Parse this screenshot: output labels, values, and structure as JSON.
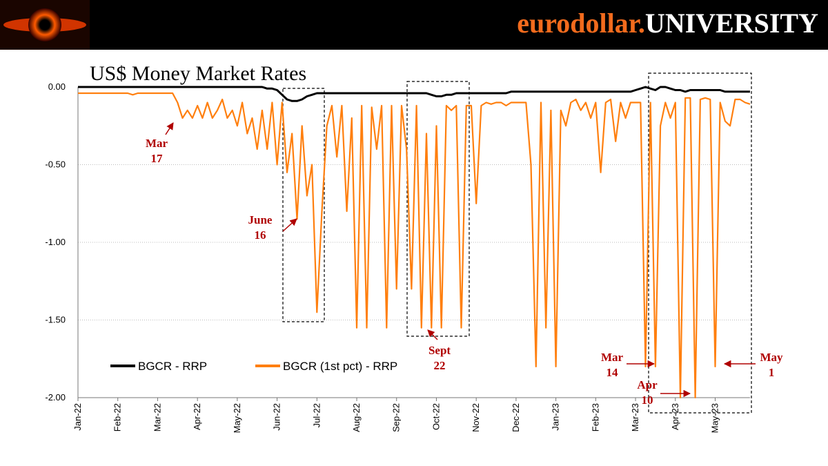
{
  "header": {
    "brand": "eurodollar.",
    "brand_suffix": "UNIVERSITY"
  },
  "chart_data": {
    "type": "line",
    "title": "US$ Money Market Rates",
    "categories": [
      "Jan-22",
      null,
      null,
      null,
      null,
      null,
      null,
      null,
      "Feb-22",
      null,
      null,
      null,
      null,
      null,
      null,
      null,
      "Mar-22",
      null,
      null,
      null,
      null,
      null,
      null,
      null,
      "Apr-22",
      null,
      null,
      null,
      null,
      null,
      null,
      null,
      "May-22",
      null,
      null,
      null,
      null,
      null,
      null,
      null,
      "Jun-22",
      null,
      null,
      null,
      null,
      null,
      null,
      null,
      "Jul-22",
      null,
      null,
      null,
      null,
      null,
      null,
      null,
      "Aug-22",
      null,
      null,
      null,
      null,
      null,
      null,
      null,
      "Sep-22",
      null,
      null,
      null,
      null,
      null,
      null,
      null,
      "Oct-22",
      null,
      null,
      null,
      null,
      null,
      null,
      null,
      "Nov-22",
      null,
      null,
      null,
      null,
      null,
      null,
      null,
      "Dec-22",
      null,
      null,
      null,
      null,
      null,
      null,
      null,
      "Jan-23",
      null,
      null,
      null,
      null,
      null,
      null,
      null,
      "Feb-23",
      null,
      null,
      null,
      null,
      null,
      null,
      null,
      "Mar-23",
      null,
      null,
      null,
      null,
      null,
      null,
      null,
      "Apr-23",
      null,
      null,
      null,
      null,
      null,
      null,
      null,
      "May-23",
      null,
      null,
      null,
      null,
      null,
      null,
      null
    ],
    "series": [
      {
        "name": "BGCR - RRP",
        "color": "#000000",
        "values": [
          0,
          0,
          0,
          0,
          0,
          0,
          0,
          0,
          0,
          0,
          0,
          0,
          0,
          0,
          0,
          0,
          0,
          0,
          0,
          0,
          0,
          0,
          0,
          0,
          0,
          0,
          0,
          0,
          0,
          0,
          0,
          0,
          0,
          0,
          0,
          0,
          0,
          0,
          -0.01,
          -0.01,
          -0.02,
          -0.05,
          -0.08,
          -0.09,
          -0.09,
          -0.08,
          -0.06,
          -0.05,
          -0.04,
          -0.04,
          -0.04,
          -0.04,
          -0.04,
          -0.04,
          -0.04,
          -0.04,
          -0.04,
          -0.04,
          -0.04,
          -0.04,
          -0.04,
          -0.04,
          -0.04,
          -0.04,
          -0.04,
          -0.04,
          -0.04,
          -0.04,
          -0.04,
          -0.04,
          -0.04,
          -0.05,
          -0.06,
          -0.06,
          -0.05,
          -0.05,
          -0.04,
          -0.04,
          -0.04,
          -0.04,
          -0.04,
          -0.04,
          -0.04,
          -0.04,
          -0.04,
          -0.04,
          -0.04,
          -0.03,
          -0.03,
          -0.03,
          -0.03,
          -0.03,
          -0.03,
          -0.03,
          -0.03,
          -0.03,
          -0.03,
          -0.03,
          -0.03,
          -0.03,
          -0.03,
          -0.03,
          -0.03,
          -0.03,
          -0.03,
          -0.03,
          -0.03,
          -0.03,
          -0.03,
          -0.03,
          -0.03,
          -0.03,
          -0.02,
          -0.01,
          0,
          -0.01,
          -0.02,
          0,
          0,
          -0.01,
          -0.02,
          -0.02,
          -0.03,
          -0.02,
          -0.02,
          -0.02,
          -0.02,
          -0.02,
          -0.02,
          -0.02,
          -0.03,
          -0.03,
          -0.03,
          -0.03,
          -0.03,
          -0.03
        ]
      },
      {
        "name": "BGCR (1st pct) - RRP",
        "color": "#ff7f0e",
        "values": [
          -0.04,
          -0.04,
          -0.04,
          -0.04,
          -0.04,
          -0.04,
          -0.04,
          -0.04,
          -0.04,
          -0.04,
          -0.04,
          -0.05,
          -0.04,
          -0.04,
          -0.04,
          -0.04,
          -0.04,
          -0.04,
          -0.04,
          -0.04,
          -0.1,
          -0.2,
          -0.15,
          -0.2,
          -0.12,
          -0.2,
          -0.1,
          -0.2,
          -0.15,
          -0.08,
          -0.2,
          -0.15,
          -0.25,
          -0.1,
          -0.3,
          -0.2,
          -0.4,
          -0.15,
          -0.4,
          -0.1,
          -0.5,
          -0.1,
          -0.55,
          -0.3,
          -0.85,
          -0.25,
          -0.7,
          -0.5,
          -1.45,
          -0.8,
          -0.25,
          -0.12,
          -0.45,
          -0.12,
          -0.8,
          -0.2,
          -1.55,
          -0.12,
          -1.55,
          -0.13,
          -0.4,
          -0.12,
          -1.55,
          -0.12,
          -1.3,
          -0.12,
          -0.4,
          -1.3,
          -0.12,
          -1.55,
          -0.3,
          -1.55,
          -0.25,
          -1.55,
          -0.12,
          -0.15,
          -0.12,
          -1.55,
          -0.12,
          -0.12,
          -0.75,
          -0.12,
          -0.1,
          -0.11,
          -0.1,
          -0.1,
          -0.12,
          -0.1,
          -0.1,
          -0.1,
          -0.1,
          -0.5,
          -1.8,
          -0.1,
          -1.55,
          -0.15,
          -1.8,
          -0.15,
          -0.25,
          -0.1,
          -0.08,
          -0.15,
          -0.1,
          -0.2,
          -0.1,
          -0.55,
          -0.1,
          -0.08,
          -0.35,
          -0.1,
          -0.2,
          -0.1,
          -0.1,
          -0.1,
          -1.8,
          -0.1,
          -1.8,
          -0.25,
          -0.1,
          -0.2,
          -0.1,
          -2.0,
          -0.07,
          -0.07,
          -2.0,
          -0.08,
          -0.07,
          -0.08,
          -1.8,
          -0.1,
          -0.22,
          -0.25,
          -0.08,
          -0.08,
          -0.1,
          -0.11
        ]
      }
    ],
    "ylim": [
      -2,
      0
    ],
    "yticks": [
      {
        "value": 0,
        "label": "0.00"
      },
      {
        "value": -0.5,
        "label": "-0.50"
      },
      {
        "value": -1,
        "label": "-1.00"
      },
      {
        "value": -1.5,
        "label": "-1.50"
      },
      {
        "value": -2,
        "label": "-2.00"
      }
    ],
    "grid": true,
    "annotations": [
      [
        "Mar",
        "17"
      ],
      [
        "June",
        "16"
      ],
      [
        "Sept",
        "22"
      ],
      [
        "Mar",
        "14"
      ],
      [
        "Apr",
        "10"
      ],
      [
        "May",
        "1"
      ]
    ]
  }
}
